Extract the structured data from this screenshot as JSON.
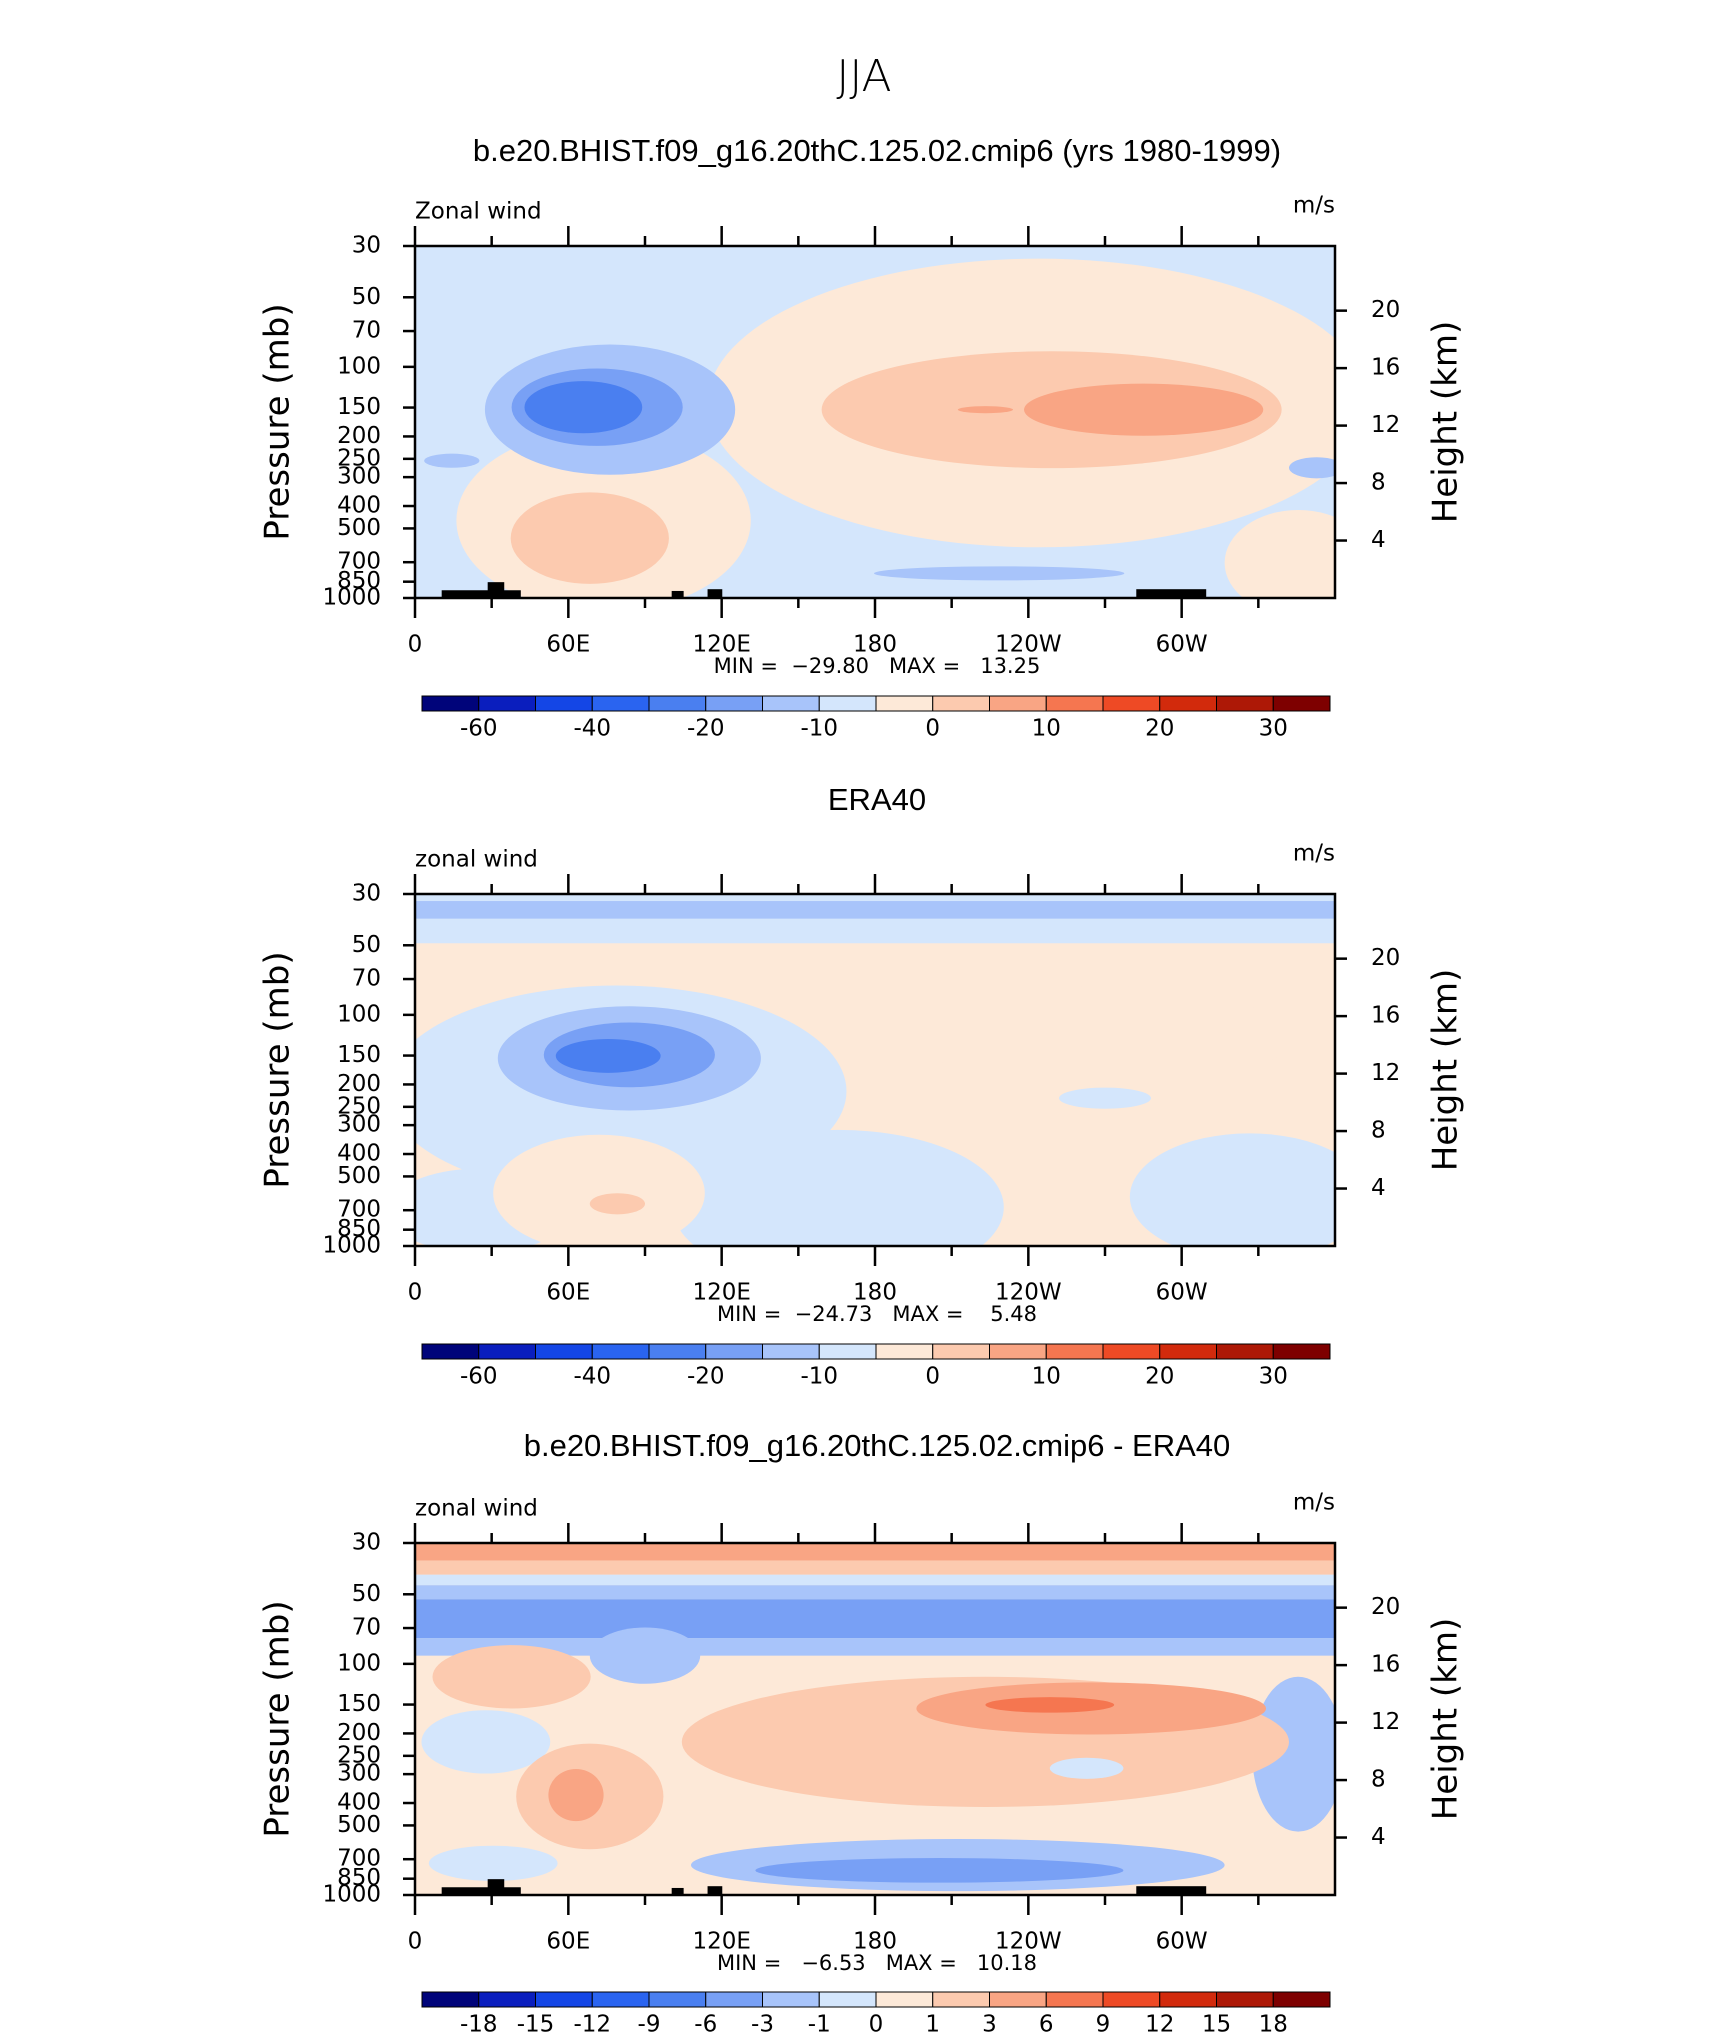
{
  "title": "JJA",
  "chart_data": [
    {
      "type": "contour",
      "title": "b.e20.BHIST.f09_g16.20thC.125.02.cmip6 (yrs 1980-1999)",
      "label_left": "Zonal wind",
      "label_right": "m/s",
      "ylabel": "Pressure (mb)",
      "y2label": "Height (km)",
      "stats": "MIN =  −29.80   MAX =   13.25",
      "xlim": [
        0,
        360
      ],
      "xticks": [
        0,
        {
          "value": 60,
          "label": "60E"
        },
        {
          "value": 120,
          "label": "120E"
        },
        180,
        {
          "value": 240,
          "label": "120W"
        },
        {
          "value": 300,
          "label": "60W"
        }
      ],
      "xminorticks": [
        30,
        90,
        150,
        210,
        270,
        330
      ],
      "ylim": [
        1000,
        30
      ],
      "log_y": true,
      "yticks": [
        30,
        50,
        70,
        100,
        150,
        200,
        250,
        300,
        400,
        500,
        700,
        850,
        1000
      ],
      "y2lim": [
        0,
        24.5
      ],
      "y2ticks": [
        4,
        8,
        12,
        16,
        20
      ],
      "colorbar": {
        "colors": [
          "#00047a",
          "#0a1ebe",
          "#1446e6",
          "#2a64f0",
          "#4a7ff0",
          "#78a0f5",
          "#a8c4fa",
          "#d4e6fc",
          "#fde9d8",
          "#fccaaf",
          "#f9a584",
          "#f57650",
          "#ee4a25",
          "#d22a0c",
          "#ad1806",
          "#7e0000"
        ],
        "ticks": [
          -60,
          -40,
          -20,
          -10,
          0,
          10,
          20,
          30
        ]
      }
    },
    {
      "type": "contour",
      "title": "ERA40",
      "label_left": "zonal wind",
      "label_right": "m/s",
      "ylabel": "Pressure (mb)",
      "y2label": "Height (km)",
      "stats": "MIN =  −24.73   MAX =    5.48",
      "xlim": [
        0,
        360
      ],
      "xticks": [
        0,
        {
          "value": 60,
          "label": "60E"
        },
        {
          "value": 120,
          "label": "120E"
        },
        180,
        {
          "value": 240,
          "label": "120W"
        },
        {
          "value": 300,
          "label": "60W"
        }
      ],
      "xminorticks": [
        30,
        90,
        150,
        210,
        270,
        330
      ],
      "ylim": [
        1000,
        30
      ],
      "log_y": true,
      "yticks": [
        30,
        50,
        70,
        100,
        150,
        200,
        250,
        300,
        400,
        500,
        700,
        850,
        1000
      ],
      "y2lim": [
        0,
        24.5
      ],
      "y2ticks": [
        4,
        8,
        12,
        16,
        20
      ],
      "colorbar": {
        "colors": [
          "#00047a",
          "#0a1ebe",
          "#1446e6",
          "#2a64f0",
          "#4a7ff0",
          "#78a0f5",
          "#a8c4fa",
          "#d4e6fc",
          "#fde9d8",
          "#fccaaf",
          "#f9a584",
          "#f57650",
          "#ee4a25",
          "#d22a0c",
          "#ad1806",
          "#7e0000"
        ],
        "ticks": [
          -60,
          -40,
          -20,
          -10,
          0,
          10,
          20,
          30
        ]
      }
    },
    {
      "type": "contour",
      "title": "b.e20.BHIST.f09_g16.20thC.125.02.cmip6 - ERA40",
      "label_left": "zonal wind",
      "label_right": "m/s",
      "ylabel": "Pressure (mb)",
      "y2label": "Height (km)",
      "stats": "MIN =   −6.53   MAX =   10.18",
      "xlim": [
        0,
        360
      ],
      "xticks": [
        0,
        {
          "value": 60,
          "label": "60E"
        },
        {
          "value": 120,
          "label": "120E"
        },
        180,
        {
          "value": 240,
          "label": "120W"
        },
        {
          "value": 300,
          "label": "60W"
        }
      ],
      "xminorticks": [
        30,
        90,
        150,
        210,
        270,
        330
      ],
      "ylim": [
        1000,
        30
      ],
      "log_y": true,
      "yticks": [
        30,
        50,
        70,
        100,
        150,
        200,
        250,
        300,
        400,
        500,
        700,
        850,
        1000
      ],
      "y2lim": [
        0,
        24.5
      ],
      "y2ticks": [
        4,
        8,
        12,
        16,
        20
      ],
      "colorbar": {
        "colors": [
          "#00047a",
          "#0a1ebe",
          "#1446e6",
          "#2a64f0",
          "#4a7ff0",
          "#78a0f5",
          "#a8c4fa",
          "#d4e6fc",
          "#fde9d8",
          "#fccaaf",
          "#f9a584",
          "#f57650",
          "#ee4a25",
          "#d22a0c",
          "#ad1806",
          "#7e0000"
        ],
        "ticks": [
          -18,
          -15,
          -12,
          -9,
          -6,
          -3,
          -1,
          0,
          1,
          3,
          6,
          9,
          12,
          15,
          18
        ]
      }
    }
  ]
}
